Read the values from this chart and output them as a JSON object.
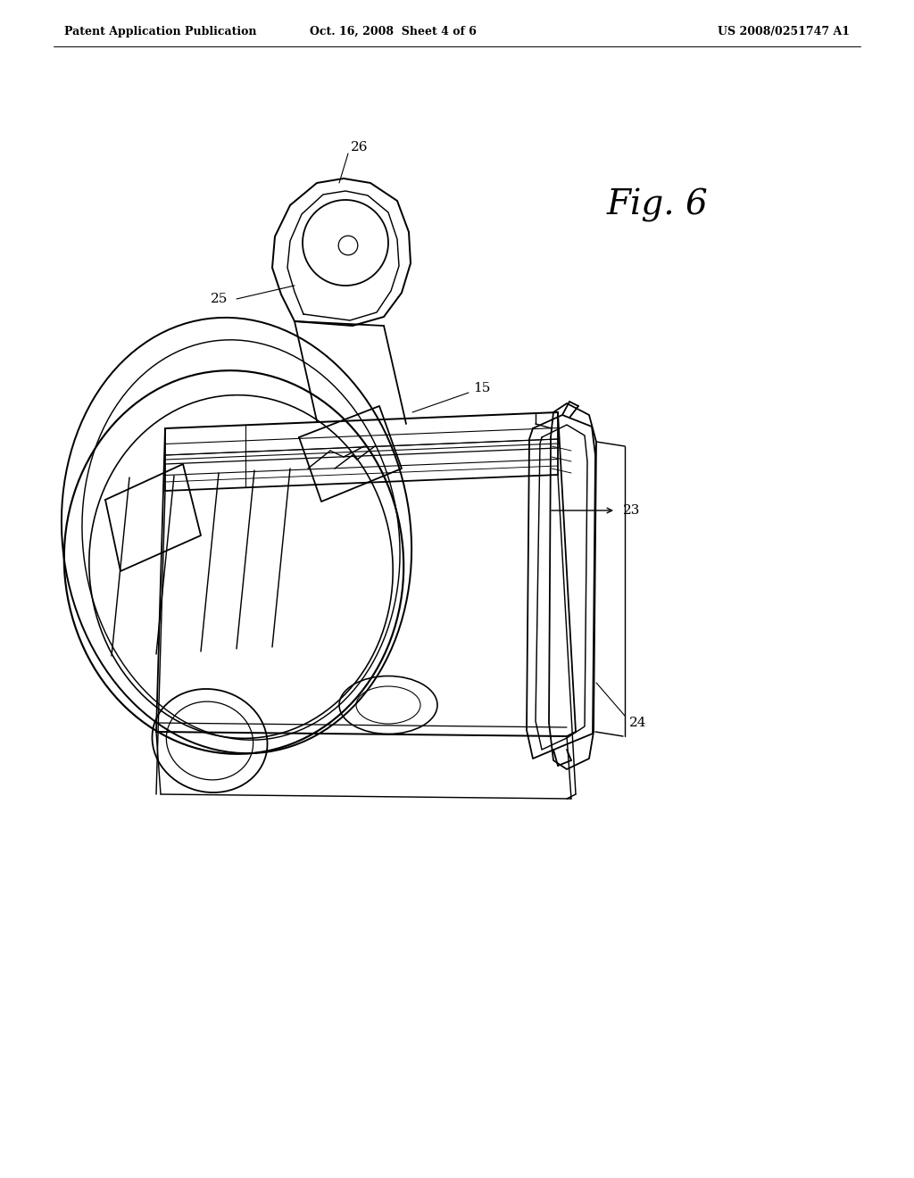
{
  "bg_color": "#ffffff",
  "header_left": "Patent Application Publication",
  "header_center": "Oct. 16, 2008  Sheet 4 of 6",
  "header_right": "US 2008/0251747 A1",
  "fig_label": "Fig. 6",
  "line_color": "#000000",
  "header_fontsize": 9,
  "ref_fontsize": 11,
  "fig_fontsize": 28,
  "lw": 1.3
}
